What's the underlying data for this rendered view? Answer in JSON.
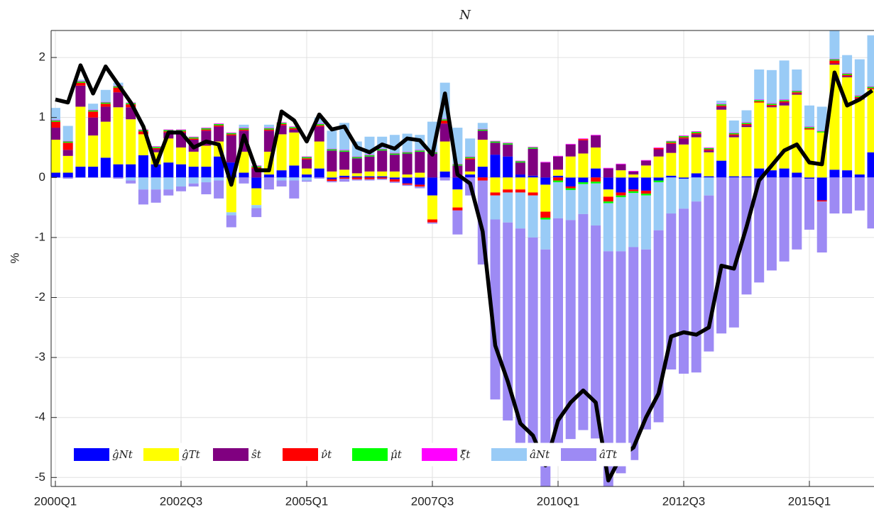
{
  "chart_data": {
    "type": "bar",
    "stacked": true,
    "title": "N",
    "y_label": "%",
    "categories": [
      "2000Q1",
      null,
      null,
      null,
      null,
      null,
      null,
      null,
      null,
      null,
      "2002Q3",
      null,
      null,
      null,
      null,
      null,
      null,
      null,
      null,
      null,
      "2005Q1",
      null,
      null,
      null,
      null,
      null,
      null,
      null,
      null,
      null,
      "2007Q3",
      null,
      null,
      null,
      null,
      null,
      null,
      null,
      null,
      null,
      "2010Q1",
      null,
      null,
      null,
      null,
      null,
      null,
      null,
      null,
      null,
      "2012Q3",
      null,
      null,
      null,
      null,
      null,
      null,
      null,
      null,
      null,
      "2015Q1",
      null,
      null,
      null,
      null,
      null
    ],
    "ylim": [
      -5.15,
      2.45
    ],
    "yticks": [
      -5,
      -4,
      -3,
      -2,
      -1,
      0,
      1,
      2
    ],
    "grid": true,
    "legend": "southwest",
    "series": [
      {
        "name": "ĝNt",
        "color": "#0000ff",
        "values": [
          0.08,
          0.08,
          0.18,
          0.18,
          0.33,
          0.22,
          0.22,
          0.37,
          0.22,
          0.25,
          0.22,
          0.18,
          0.18,
          0.35,
          0.25,
          0.08,
          -0.18,
          0.05,
          0.12,
          0.2,
          0.05,
          0.15,
          -0.03,
          0.03,
          0.02,
          0.02,
          0.02,
          -0.03,
          -0.1,
          -0.12,
          -0.3,
          0.1,
          -0.2,
          0.05,
          0.18,
          0.38,
          0.35,
          0.05,
          0.03,
          -0.12,
          0.03,
          -0.15,
          -0.08,
          0.15,
          -0.2,
          -0.25,
          -0.2,
          -0.22,
          -0.05,
          0.03,
          -0.02,
          0.07,
          0.02,
          0.28,
          0.02,
          0.02,
          0.15,
          0.12,
          0.15,
          0.08,
          -0.02,
          -0.38,
          0.13,
          0.12,
          0.05,
          0.42
        ]
      },
      {
        "name": "ĝTt",
        "color": "#ffff00",
        "values": [
          0.55,
          0.28,
          1.0,
          0.52,
          0.6,
          0.95,
          0.75,
          0.35,
          0.2,
          0.4,
          0.28,
          0.25,
          0.35,
          0.25,
          -0.58,
          0.35,
          -0.28,
          0.38,
          0.6,
          0.55,
          0.1,
          0.45,
          0.1,
          0.1,
          0.05,
          0.08,
          0.08,
          0.1,
          0.05,
          0.08,
          -0.4,
          0.5,
          -0.3,
          0.05,
          0.45,
          -0.25,
          -0.2,
          -0.2,
          -0.25,
          -0.45,
          0.1,
          0.35,
          0.4,
          0.35,
          -0.12,
          0.12,
          0.05,
          0.2,
          0.35,
          0.38,
          0.55,
          0.6,
          0.4,
          0.85,
          0.65,
          0.82,
          1.1,
          1.05,
          1.05,
          1.3,
          0.8,
          0.75,
          1.75,
          1.55,
          1.25,
          1.05
        ]
      },
      {
        "name": "ŝt",
        "color": "#800080",
        "values": [
          0.2,
          0.1,
          0.35,
          0.3,
          0.25,
          0.25,
          0.2,
          0.0,
          0.05,
          0.1,
          0.25,
          0.2,
          0.25,
          0.25,
          0.45,
          0.35,
          0.15,
          0.35,
          0.15,
          0.05,
          0.15,
          0.25,
          0.35,
          0.3,
          0.25,
          0.25,
          0.35,
          0.28,
          0.35,
          0.35,
          0.4,
          0.3,
          0.2,
          0.2,
          0.15,
          0.2,
          0.2,
          0.2,
          0.45,
          0.25,
          0.22,
          0.2,
          0.22,
          0.2,
          0.15,
          0.1,
          0.05,
          0.08,
          0.12,
          0.15,
          0.1,
          0.05,
          0.03,
          0.05,
          0.03,
          0.03,
          0.0,
          0.02,
          0.05,
          0.02,
          0,
          0,
          0.02,
          0.02,
          0.02,
          0.0
        ]
      },
      {
        "name": "ν̂t",
        "color": "#ff0000",
        "values": [
          0.1,
          0.12,
          0.05,
          0.1,
          0.05,
          0.08,
          0.05,
          0.05,
          0.02,
          0.02,
          0.02,
          0.02,
          0.02,
          0.02,
          0.02,
          0.02,
          0.02,
          0.02,
          0.02,
          0.02,
          0.02,
          0.02,
          -0.03,
          -0.02,
          -0.03,
          -0.03,
          -0.02,
          -0.04,
          -0.02,
          -0.03,
          -0.05,
          0.05,
          -0.05,
          0.02,
          -0.05,
          -0.05,
          -0.05,
          -0.05,
          -0.05,
          -0.1,
          -0.05,
          -0.03,
          0.02,
          -0.07,
          -0.08,
          -0.05,
          -0.03,
          -0.05,
          0.02,
          0.02,
          0.02,
          0.02,
          0.02,
          0.02,
          0.02,
          0.02,
          0.02,
          0.02,
          0.02,
          0.02,
          0.02,
          -0.02,
          0.05,
          0.02,
          0.02,
          0.02
        ]
      },
      {
        "name": "μ̂t",
        "color": "#00ff00",
        "values": [
          0.02,
          0.02,
          0.02,
          0.02,
          0.02,
          0.02,
          0.02,
          0.02,
          0.02,
          0.02,
          0.02,
          0.02,
          0.02,
          0.02,
          0.02,
          0.02,
          0.02,
          0.02,
          0.02,
          0.02,
          0.02,
          0.02,
          0.02,
          0.02,
          0.02,
          0.02,
          0.02,
          0.02,
          0.02,
          0.02,
          0.02,
          0.02,
          0.02,
          0.02,
          0.02,
          0.02,
          0.02,
          0.02,
          0.02,
          -0.03,
          -0.03,
          -0.03,
          -0.03,
          -0.03,
          -0.03,
          -0.03,
          -0.03,
          -0.03,
          -0.03,
          0.02,
          0.02,
          0.02,
          0.02,
          0.02,
          0.02,
          0.02,
          0.02,
          0.02,
          0.02,
          0.02,
          0.02,
          0.02,
          0.02,
          0.02,
          0.02,
          0.02
        ]
      },
      {
        "name": "ξ̂t",
        "color": "#ff00ff",
        "values": [
          0.01,
          0.01,
          0.01,
          0.01,
          0.01,
          0.01,
          0.01,
          0.01,
          0.01,
          0.01,
          0.01,
          0.01,
          0.01,
          0.01,
          0.01,
          0.01,
          0.01,
          0.01,
          0.01,
          0.01,
          0.01,
          0.01,
          0.01,
          0.01,
          0.01,
          0.01,
          0.01,
          0.01,
          0.01,
          0.01,
          0.01,
          0.01,
          0.01,
          0.01,
          0.01,
          0.01,
          0.01,
          0.01,
          0.01,
          0.01,
          0.01,
          0.01,
          0.01,
          0.01,
          0.01,
          0.01,
          0.01,
          0.01,
          0.01,
          0.01,
          0.01,
          0.01,
          0.01,
          0.01,
          0.01,
          0.01,
          0.01,
          0.01,
          0.01,
          0.01,
          0.01,
          0.01,
          0.01,
          0.01,
          0.01,
          0.01
        ]
      },
      {
        "name": "âNt",
        "color": "#99cbf6",
        "values": [
          0.2,
          0.25,
          0.02,
          0.1,
          0.2,
          0.05,
          -0.05,
          -0.2,
          -0.2,
          -0.2,
          -0.15,
          -0.1,
          -0.08,
          -0.05,
          -0.05,
          0.05,
          -0.05,
          0.05,
          -0.05,
          -0.05,
          -0.05,
          0.1,
          0.3,
          0.45,
          0.25,
          0.3,
          0.2,
          0.3,
          0.3,
          0.25,
          0.5,
          0.6,
          0.6,
          0.3,
          0.1,
          -0.4,
          -0.5,
          -0.6,
          -0.7,
          -0.5,
          -0.6,
          -0.5,
          -0.5,
          -0.7,
          -0.8,
          -0.9,
          -0.9,
          -0.9,
          -0.8,
          -0.6,
          -0.5,
          -0.4,
          -0.3,
          0.05,
          0.2,
          0.2,
          0.5,
          0.55,
          0.65,
          0.35,
          0.35,
          0.4,
          0.5,
          0.3,
          0.6,
          0.85
        ]
      },
      {
        "name": "âTt",
        "color": "#9d8af4",
        "values": [
          0,
          -0.02,
          0,
          0,
          0,
          -0.02,
          -0.05,
          -0.25,
          -0.22,
          -0.1,
          -0.08,
          -0.05,
          -0.2,
          -0.3,
          -0.2,
          -0.1,
          -0.15,
          -0.2,
          -0.1,
          -0.3,
          -0.02,
          -0.02,
          -0.02,
          -0.05,
          -0.02,
          -0.02,
          -0.02,
          -0.02,
          -0.02,
          -0.03,
          -0.02,
          -0.05,
          -0.4,
          -0.3,
          -1.4,
          -3.0,
          -3.3,
          -3.7,
          -3.7,
          -4.3,
          -3.75,
          -3.65,
          -3.6,
          -3.55,
          -4.0,
          -3.7,
          -3.55,
          -3.0,
          -3.2,
          -2.6,
          -2.75,
          -2.85,
          -2.6,
          -2.6,
          -2.5,
          -1.95,
          -1.75,
          -1.55,
          -1.4,
          -1.2,
          -0.85,
          -0.85,
          -0.6,
          -0.6,
          -0.55,
          -0.85
        ]
      }
    ],
    "line": {
      "color": "#000000",
      "values": [
        1.3,
        1.25,
        1.87,
        1.4,
        1.85,
        1.55,
        1.25,
        0.85,
        0.2,
        0.75,
        0.75,
        0.5,
        0.6,
        0.55,
        -0.12,
        0.7,
        0.12,
        0.12,
        1.1,
        0.95,
        0.6,
        1.05,
        0.8,
        0.85,
        0.5,
        0.42,
        0.55,
        0.48,
        0.65,
        0.62,
        0.38,
        1.4,
        0.05,
        -0.1,
        -0.9,
        -2.8,
        -3.4,
        -4.1,
        -4.3,
        -4.8,
        -4.05,
        -3.75,
        -3.55,
        -3.75,
        -5.05,
        -4.65,
        -4.5,
        -4.0,
        -3.6,
        -2.65,
        -2.58,
        -2.62,
        -2.5,
        -1.47,
        -1.52,
        -0.82,
        -0.05,
        0.2,
        0.45,
        0.55,
        0.25,
        0.22,
        1.75,
        1.2,
        1.3,
        1.45
      ]
    }
  }
}
